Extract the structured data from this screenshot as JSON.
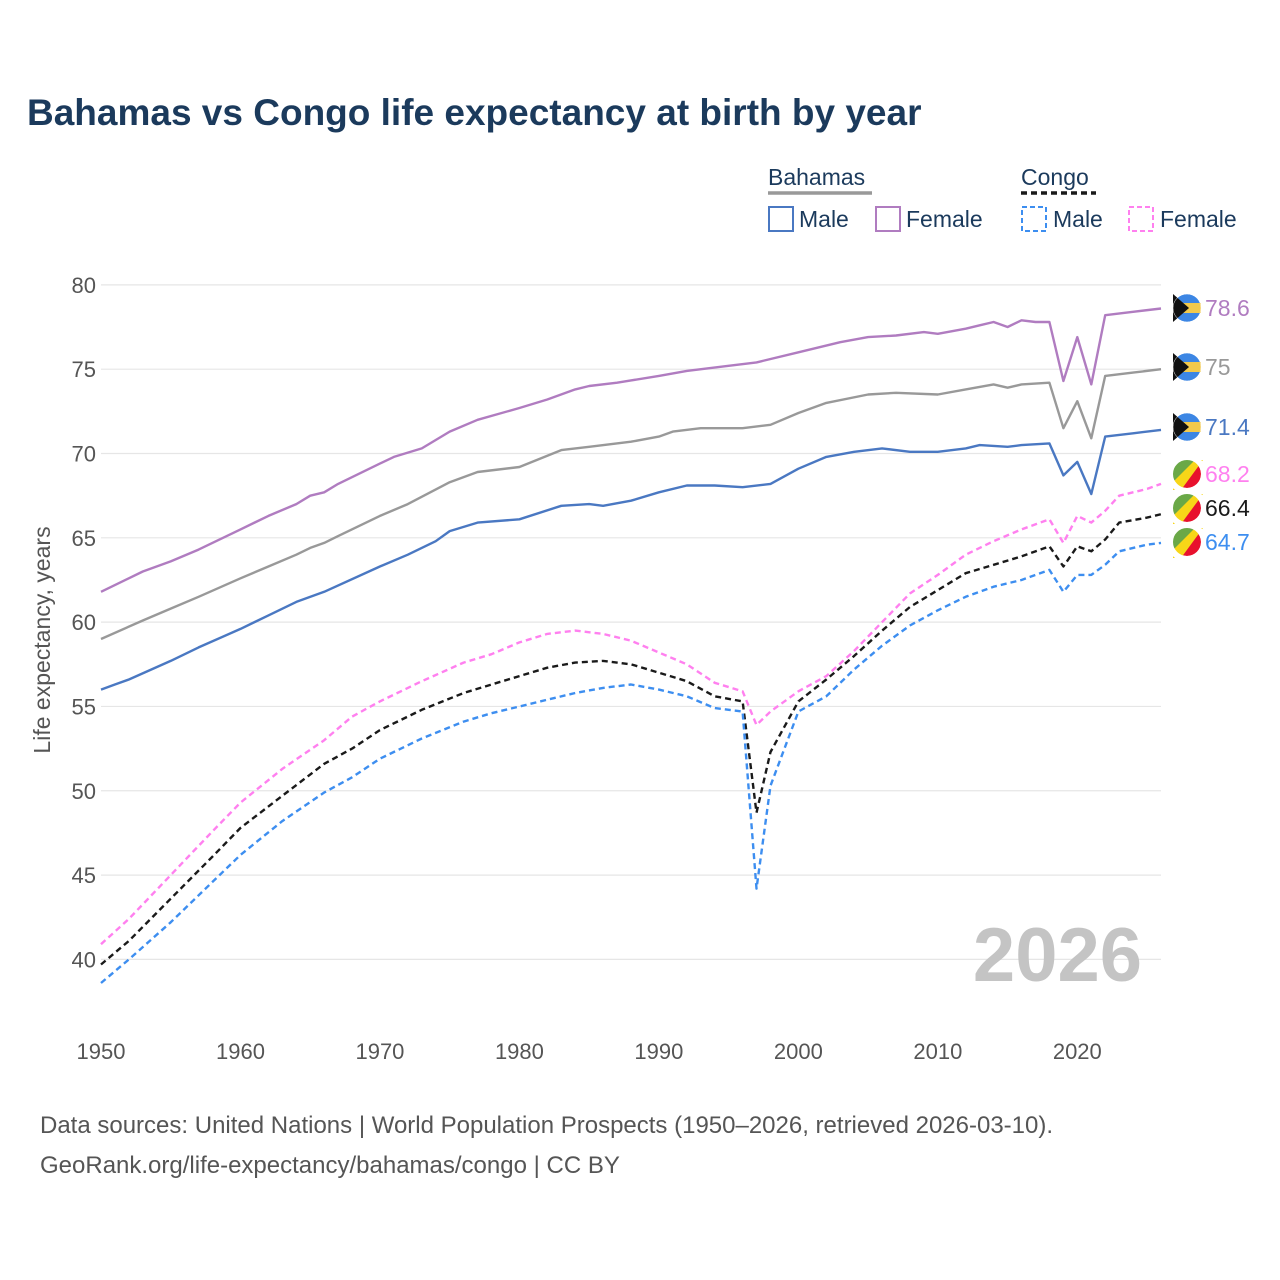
{
  "title": "Bahamas vs Congo life expectancy at birth by year",
  "year_watermark": "2026",
  "footer": {
    "line1": "Data sources: United Nations | World Population Prospects (1950–2026, retrieved 2026-03-10).",
    "line2": "GeoRank.org/life-expectancy/bahamas/congo | CC BY"
  },
  "legend": {
    "groups": [
      {
        "name": "Bahamas",
        "items": [
          "Male",
          "Female"
        ]
      },
      {
        "name": "Congo",
        "items": [
          "Male",
          "Female"
        ]
      }
    ]
  },
  "colors": {
    "bahamas_total": "#999999",
    "bahamas_male": "#4a78c2",
    "bahamas_female": "#b07cc0",
    "congo_total": "#1a1a1a",
    "congo_male": "#3d8ef0",
    "congo_female": "#ff80ef",
    "grid": "#e6e6e6",
    "title": "#1b3a5c"
  },
  "chart_data": {
    "type": "line",
    "title": "Bahamas vs Congo life expectancy at birth by year",
    "xlabel": "",
    "ylabel": "Life expectancy, years",
    "xlim": [
      1950,
      2026
    ],
    "ylim": [
      37,
      81
    ],
    "x_ticks": [
      1950,
      1960,
      1970,
      1980,
      1990,
      2000,
      2010,
      2020
    ],
    "y_ticks": [
      40,
      45,
      50,
      55,
      60,
      65,
      70,
      75,
      80
    ],
    "series": [
      {
        "name": "Bahamas Female",
        "country": "Bahamas",
        "sex": "Female",
        "dashed": false,
        "color_key": "bahamas_female",
        "points": [
          [
            1950,
            61.8
          ],
          [
            1953,
            63.0
          ],
          [
            1955,
            63.6
          ],
          [
            1957,
            64.3
          ],
          [
            1960,
            65.5
          ],
          [
            1962,
            66.3
          ],
          [
            1964,
            67.0
          ],
          [
            1965,
            67.5
          ],
          [
            1966,
            67.7
          ],
          [
            1967,
            68.2
          ],
          [
            1970,
            69.4
          ],
          [
            1971,
            69.8
          ],
          [
            1973,
            70.3
          ],
          [
            1975,
            71.3
          ],
          [
            1977,
            72.0
          ],
          [
            1980,
            72.7
          ],
          [
            1982,
            73.2
          ],
          [
            1984,
            73.8
          ],
          [
            1985,
            74.0
          ],
          [
            1987,
            74.2
          ],
          [
            1990,
            74.6
          ],
          [
            1992,
            74.9
          ],
          [
            1995,
            75.2
          ],
          [
            1997,
            75.4
          ],
          [
            2000,
            76.0
          ],
          [
            2003,
            76.6
          ],
          [
            2005,
            76.9
          ],
          [
            2007,
            77.0
          ],
          [
            2009,
            77.2
          ],
          [
            2010,
            77.1
          ],
          [
            2012,
            77.4
          ],
          [
            2013,
            77.6
          ],
          [
            2014,
            77.8
          ],
          [
            2015,
            77.5
          ],
          [
            2016,
            77.9
          ],
          [
            2017,
            77.8
          ],
          [
            2018,
            77.8
          ],
          [
            2019,
            74.3
          ],
          [
            2020,
            76.9
          ],
          [
            2021,
            74.1
          ],
          [
            2022,
            78.2
          ],
          [
            2024,
            78.4
          ],
          [
            2026,
            78.6
          ]
        ]
      },
      {
        "name": "Bahamas",
        "country": "Bahamas",
        "sex": "Total",
        "dashed": false,
        "color_key": "bahamas_total",
        "points": [
          [
            1950,
            59.0
          ],
          [
            1953,
            60.1
          ],
          [
            1955,
            60.8
          ],
          [
            1957,
            61.5
          ],
          [
            1960,
            62.6
          ],
          [
            1962,
            63.3
          ],
          [
            1964,
            64.0
          ],
          [
            1965,
            64.4
          ],
          [
            1966,
            64.7
          ],
          [
            1967,
            65.1
          ],
          [
            1970,
            66.3
          ],
          [
            1972,
            67.0
          ],
          [
            1975,
            68.3
          ],
          [
            1977,
            68.9
          ],
          [
            1980,
            69.2
          ],
          [
            1983,
            70.2
          ],
          [
            1985,
            70.4
          ],
          [
            1988,
            70.7
          ],
          [
            1990,
            71.0
          ],
          [
            1991,
            71.3
          ],
          [
            1993,
            71.5
          ],
          [
            1996,
            71.5
          ],
          [
            1998,
            71.7
          ],
          [
            2000,
            72.4
          ],
          [
            2002,
            73.0
          ],
          [
            2005,
            73.5
          ],
          [
            2007,
            73.6
          ],
          [
            2010,
            73.5
          ],
          [
            2012,
            73.8
          ],
          [
            2014,
            74.1
          ],
          [
            2015,
            73.9
          ],
          [
            2016,
            74.1
          ],
          [
            2018,
            74.2
          ],
          [
            2019,
            71.5
          ],
          [
            2020,
            73.1
          ],
          [
            2021,
            70.9
          ],
          [
            2022,
            74.6
          ],
          [
            2024,
            74.8
          ],
          [
            2026,
            75.0
          ]
        ]
      },
      {
        "name": "Bahamas Male",
        "country": "Bahamas",
        "sex": "Male",
        "dashed": false,
        "color_key": "bahamas_male",
        "points": [
          [
            1950,
            56.0
          ],
          [
            1951,
            56.3
          ],
          [
            1952,
            56.6
          ],
          [
            1955,
            57.7
          ],
          [
            1957,
            58.5
          ],
          [
            1960,
            59.6
          ],
          [
            1962,
            60.4
          ],
          [
            1964,
            61.2
          ],
          [
            1966,
            61.8
          ],
          [
            1970,
            63.3
          ],
          [
            1972,
            64.0
          ],
          [
            1974,
            64.8
          ],
          [
            1975,
            65.4
          ],
          [
            1977,
            65.9
          ],
          [
            1980,
            66.1
          ],
          [
            1983,
            66.9
          ],
          [
            1985,
            67.0
          ],
          [
            1986,
            66.9
          ],
          [
            1988,
            67.2
          ],
          [
            1990,
            67.7
          ],
          [
            1992,
            68.1
          ],
          [
            1994,
            68.1
          ],
          [
            1996,
            68.0
          ],
          [
            1998,
            68.2
          ],
          [
            2000,
            69.1
          ],
          [
            2002,
            69.8
          ],
          [
            2004,
            70.1
          ],
          [
            2006,
            70.3
          ],
          [
            2008,
            70.1
          ],
          [
            2010,
            70.1
          ],
          [
            2012,
            70.3
          ],
          [
            2013,
            70.5
          ],
          [
            2015,
            70.4
          ],
          [
            2016,
            70.5
          ],
          [
            2018,
            70.6
          ],
          [
            2019,
            68.7
          ],
          [
            2020,
            69.5
          ],
          [
            2021,
            67.6
          ],
          [
            2022,
            71.0
          ],
          [
            2024,
            71.2
          ],
          [
            2026,
            71.4
          ]
        ]
      },
      {
        "name": "Congo Female",
        "country": "Congo",
        "sex": "Female",
        "dashed": true,
        "color_key": "congo_female",
        "points": [
          [
            1950,
            40.9
          ],
          [
            1952,
            42.4
          ],
          [
            1955,
            45.0
          ],
          [
            1958,
            47.6
          ],
          [
            1960,
            49.3
          ],
          [
            1963,
            51.3
          ],
          [
            1966,
            53.0
          ],
          [
            1968,
            54.4
          ],
          [
            1970,
            55.3
          ],
          [
            1973,
            56.5
          ],
          [
            1976,
            57.6
          ],
          [
            1978,
            58.1
          ],
          [
            1980,
            58.8
          ],
          [
            1982,
            59.3
          ],
          [
            1984,
            59.5
          ],
          [
            1986,
            59.3
          ],
          [
            1988,
            58.9
          ],
          [
            1990,
            58.2
          ],
          [
            1992,
            57.5
          ],
          [
            1994,
            56.4
          ],
          [
            1996,
            55.9
          ],
          [
            1997,
            53.9
          ],
          [
            1998,
            54.7
          ],
          [
            2000,
            55.9
          ],
          [
            2002,
            56.8
          ],
          [
            2004,
            58.3
          ],
          [
            2006,
            60.0
          ],
          [
            2008,
            61.7
          ],
          [
            2010,
            62.8
          ],
          [
            2012,
            64.0
          ],
          [
            2014,
            64.8
          ],
          [
            2016,
            65.5
          ],
          [
            2018,
            66.1
          ],
          [
            2019,
            64.7
          ],
          [
            2020,
            66.3
          ],
          [
            2021,
            65.9
          ],
          [
            2022,
            66.6
          ],
          [
            2023,
            67.5
          ],
          [
            2025,
            67.9
          ],
          [
            2026,
            68.2
          ]
        ]
      },
      {
        "name": "Congo",
        "country": "Congo",
        "sex": "Total",
        "dashed": true,
        "color_key": "congo_total",
        "points": [
          [
            1950,
            39.7
          ],
          [
            1952,
            41.1
          ],
          [
            1955,
            43.6
          ],
          [
            1958,
            46.1
          ],
          [
            1960,
            47.8
          ],
          [
            1963,
            49.7
          ],
          [
            1966,
            51.6
          ],
          [
            1968,
            52.5
          ],
          [
            1970,
            53.6
          ],
          [
            1973,
            54.8
          ],
          [
            1976,
            55.8
          ],
          [
            1978,
            56.3
          ],
          [
            1980,
            56.8
          ],
          [
            1982,
            57.3
          ],
          [
            1984,
            57.6
          ],
          [
            1986,
            57.7
          ],
          [
            1988,
            57.5
          ],
          [
            1990,
            57.0
          ],
          [
            1992,
            56.5
          ],
          [
            1994,
            55.6
          ],
          [
            1996,
            55.3
          ],
          [
            1997,
            48.7
          ],
          [
            1998,
            52.3
          ],
          [
            2000,
            55.3
          ],
          [
            2002,
            56.6
          ],
          [
            2004,
            58.0
          ],
          [
            2006,
            59.5
          ],
          [
            2008,
            60.9
          ],
          [
            2010,
            61.9
          ],
          [
            2012,
            62.9
          ],
          [
            2014,
            63.4
          ],
          [
            2016,
            63.9
          ],
          [
            2018,
            64.5
          ],
          [
            2019,
            63.3
          ],
          [
            2020,
            64.5
          ],
          [
            2021,
            64.2
          ],
          [
            2022,
            64.9
          ],
          [
            2023,
            65.9
          ],
          [
            2025,
            66.2
          ],
          [
            2026,
            66.4
          ]
        ]
      },
      {
        "name": "Congo Male",
        "country": "Congo",
        "sex": "Male",
        "dashed": true,
        "color_key": "congo_male",
        "points": [
          [
            1950,
            38.6
          ],
          [
            1952,
            40.0
          ],
          [
            1955,
            42.2
          ],
          [
            1958,
            44.6
          ],
          [
            1960,
            46.2
          ],
          [
            1963,
            48.2
          ],
          [
            1966,
            49.9
          ],
          [
            1968,
            50.8
          ],
          [
            1970,
            51.9
          ],
          [
            1973,
            53.1
          ],
          [
            1976,
            54.1
          ],
          [
            1978,
            54.6
          ],
          [
            1980,
            55.0
          ],
          [
            1982,
            55.4
          ],
          [
            1984,
            55.8
          ],
          [
            1986,
            56.1
          ],
          [
            1988,
            56.3
          ],
          [
            1990,
            56.0
          ],
          [
            1992,
            55.6
          ],
          [
            1994,
            54.9
          ],
          [
            1996,
            54.7
          ],
          [
            1997,
            44.2
          ],
          [
            1998,
            50.3
          ],
          [
            2000,
            54.7
          ],
          [
            2002,
            55.6
          ],
          [
            2004,
            57.2
          ],
          [
            2006,
            58.6
          ],
          [
            2008,
            59.8
          ],
          [
            2010,
            60.7
          ],
          [
            2012,
            61.5
          ],
          [
            2014,
            62.1
          ],
          [
            2016,
            62.5
          ],
          [
            2018,
            63.1
          ],
          [
            2019,
            61.8
          ],
          [
            2020,
            62.8
          ],
          [
            2021,
            62.8
          ],
          [
            2022,
            63.4
          ],
          [
            2023,
            64.2
          ],
          [
            2025,
            64.6
          ],
          [
            2026,
            64.7
          ]
        ]
      }
    ],
    "end_labels": [
      {
        "series": "Bahamas Female",
        "text": "78.6",
        "value": 78.6,
        "color_key": "bahamas_female",
        "flag": "bahamas-flag-icon"
      },
      {
        "series": "Bahamas",
        "text": "75",
        "value": 75.0,
        "color_key": "bahamas_total",
        "flag": "bahamas-flag-icon"
      },
      {
        "series": "Bahamas Male",
        "text": "71.4",
        "value": 71.4,
        "color_key": "bahamas_male",
        "flag": "bahamas-flag-icon"
      },
      {
        "series": "Congo Female",
        "text": "68.2",
        "value": 68.2,
        "color_key": "congo_female",
        "flag": "congo-flag-icon"
      },
      {
        "series": "Congo",
        "text": "66.4",
        "value": 66.4,
        "color_key": "congo_total",
        "flag": "congo-flag-icon"
      },
      {
        "series": "Congo Male",
        "text": "64.7",
        "value": 64.7,
        "color_key": "congo_male",
        "flag": "congo-flag-icon"
      }
    ]
  }
}
